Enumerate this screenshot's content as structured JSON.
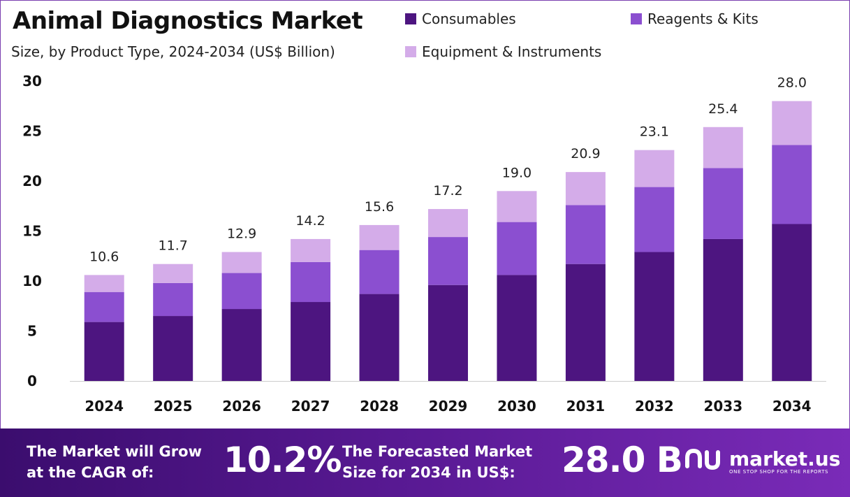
{
  "header": {
    "title": "Animal Diagnostics Market",
    "subtitle": "Size, by Product Type, 2024-2034 (US$ Billion)"
  },
  "legend": [
    {
      "label": "Consumables",
      "color": "#4d1580"
    },
    {
      "label": "Reagents & Kits",
      "color": "#8b4fd0"
    },
    {
      "label": "Equipment & Instruments",
      "color": "#d4ace9"
    }
  ],
  "chart_data": {
    "type": "bar",
    "stacked": true,
    "categories": [
      "2024",
      "2025",
      "2026",
      "2027",
      "2028",
      "2029",
      "2030",
      "2031",
      "2032",
      "2033",
      "2034"
    ],
    "series": [
      {
        "name": "Consumables",
        "color": "#4d1580",
        "values": [
          5.9,
          6.5,
          7.2,
          7.9,
          8.7,
          9.6,
          10.6,
          11.7,
          12.9,
          14.2,
          15.7
        ]
      },
      {
        "name": "Reagents & Kits",
        "color": "#8b4fd0",
        "values": [
          3.0,
          3.3,
          3.6,
          4.0,
          4.4,
          4.8,
          5.3,
          5.9,
          6.5,
          7.1,
          7.9
        ]
      },
      {
        "name": "Equipment & Instruments",
        "color": "#d4ace9",
        "values": [
          1.7,
          1.9,
          2.1,
          2.3,
          2.5,
          2.8,
          3.1,
          3.3,
          3.7,
          4.1,
          4.4
        ]
      }
    ],
    "totals": [
      "10.6",
      "11.7",
      "12.9",
      "14.2",
      "15.6",
      "17.2",
      "19.0",
      "20.9",
      "23.1",
      "25.4",
      "28.0"
    ],
    "yticks": [
      "0",
      "5",
      "10",
      "15",
      "20",
      "25",
      "30"
    ],
    "ylim": [
      0,
      30
    ],
    "grid": false,
    "legend_position": "top-right"
  },
  "footer": {
    "cagr_label_line1": "The Market will Grow",
    "cagr_label_line2": "at the CAGR of:",
    "cagr_value": "10.2%",
    "forecast_label_line1": "The Forecasted Market",
    "forecast_label_line2": "Size for 2034 in US$:",
    "forecast_value": "28.0 B",
    "brand_name": "market.us",
    "brand_tagline": "ONE STOP SHOP FOR THE REPORTS",
    "brand_icon": "market-us-logo-icon"
  }
}
